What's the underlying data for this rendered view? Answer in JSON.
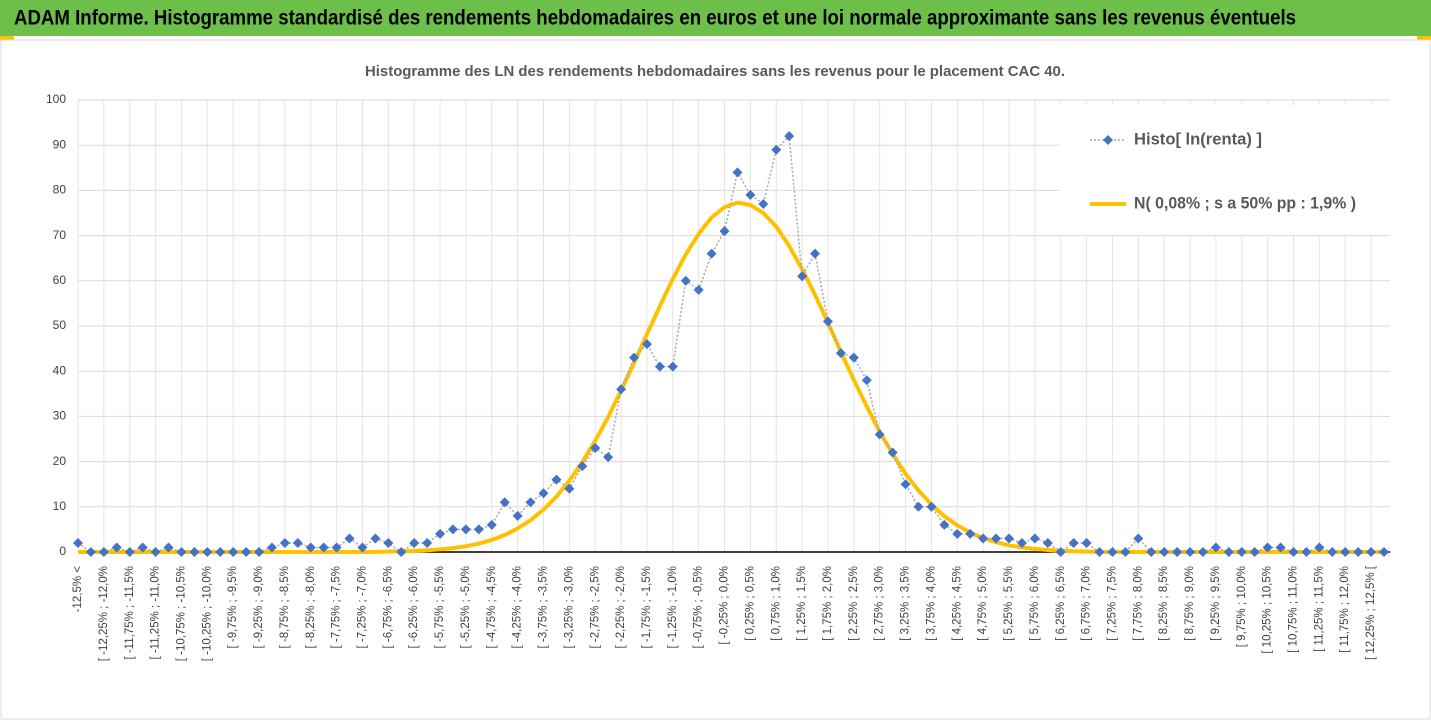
{
  "chart_data": {
    "type": "line",
    "title": "ADAM Informe. Histogramme standardisé des rendements hebdomadaires en euros et une loi normale approximante sans les revenus éventuels",
    "subtitle": "Histogramme des LN des rendements hebdomadaires sans les revenus pour le placement CAC 40.",
    "categories": [
      "-12,5% <",
      null,
      "[ -12,25% ; -12,0%",
      null,
      "[ -11,75% ; -11,5%",
      null,
      "[ -11,25% ; -11,0%",
      null,
      "[ -10,75% ; -10,5%",
      null,
      "[ -10,25% ; -10,0%",
      null,
      "[ -9,75% ; -9,5%",
      null,
      "[ -9,25% ; -9,0%",
      null,
      "[ -8,75% ; -8,5%",
      null,
      "[ -8,25% ; -8,0%",
      null,
      "[ -7,75% ; -7,5%",
      null,
      "[ -7,25% ; -7,0%",
      null,
      "[ -6,75% ; -6,5%",
      null,
      "[ -6,25% ; -6,0%",
      null,
      "[ -5,75% ; -5,5%",
      null,
      "[ -5,25% ; -5,0%",
      null,
      "[ -4,75% ; -4,5%",
      null,
      "[ -4,25% ; -4,0%",
      null,
      "[ -3,75% ; -3,5%",
      null,
      "[ -3,25% ; -3,0%",
      null,
      "[ -2,75% ; -2,5%",
      null,
      "[ -2,25% ; -2,0%",
      null,
      "[ -1,75% ; -1,5%",
      null,
      "[ -1,25% ; -1,0%",
      null,
      "[ -0,75% ; -0,5%",
      null,
      "[ -0,25% ; 0,0%",
      null,
      "[ 0,25% ; 0,5%",
      null,
      "[ 0,75% ; 1,0%",
      null,
      "[ 1,25% ; 1,5%",
      null,
      "[ 1,75% ; 2,0%",
      null,
      "[ 2,25% ; 2,5%",
      null,
      "[ 2,75% ; 3,0%",
      null,
      "[ 3,25% ; 3,5%",
      null,
      "[ 3,75% ; 4,0%",
      null,
      "[ 4,25% ; 4,5%",
      null,
      "[ 4,75% ; 5,0%",
      null,
      "[ 5,25% ; 5,5%",
      null,
      "[ 5,75% ; 6,0%",
      null,
      "[ 6,25% ; 6,5%",
      null,
      "[ 6,75% ; 7,0%",
      null,
      "[ 7,25% ; 7,5%",
      null,
      "[ 7,75% ; 8,0%",
      null,
      "[ 8,25% ; 8,5%",
      null,
      "[ 8,75% ; 9,0%",
      null,
      "[ 9,25% ; 9,5%",
      null,
      "[ 9,75% ; 10,0%",
      null,
      "[ 10,25% ; 10,5%",
      null,
      "[ 10,75% ; 11,0%",
      null,
      "[ 11,25% ; 11,5%",
      null,
      "[ 11,75% ; 12,0%",
      null,
      "[ 12,25% ; 12,5% [",
      null
    ],
    "series": [
      {
        "name": "Histo[ ln(renta) ]",
        "color": "#4472c4",
        "line_color": "#a6a6a6",
        "marker": "diamond",
        "values": [
          2,
          0,
          0,
          1,
          0,
          1,
          0,
          1,
          0,
          0,
          0,
          0,
          0,
          0,
          0,
          1,
          2,
          2,
          1,
          1,
          1,
          3,
          1,
          3,
          2,
          0,
          2,
          2,
          4,
          5,
          5,
          5,
          6,
          11,
          8,
          11,
          13,
          16,
          14,
          19,
          23,
          21,
          36,
          43,
          46,
          41,
          41,
          60,
          58,
          66,
          71,
          84,
          79,
          77,
          89,
          92,
          61,
          66,
          51,
          44,
          43,
          38,
          26,
          22,
          15,
          10,
          10,
          6,
          4,
          4,
          3,
          3,
          3,
          2,
          3,
          2,
          0,
          2,
          2,
          0,
          0,
          0,
          3,
          0,
          0,
          0,
          0,
          0,
          1,
          0,
          0,
          0,
          1,
          1,
          0,
          0,
          1,
          0,
          0,
          0,
          0,
          0
        ]
      },
      {
        "name": "N( 0,08% ; s a 50% pp : 1,9% )",
        "color": "#ffc000",
        "values": [
          0,
          0,
          0,
          0,
          0,
          0,
          0,
          0,
          0,
          0,
          0,
          0,
          0,
          0,
          0,
          0,
          0,
          0,
          0,
          0,
          0,
          0,
          0,
          0,
          0.1,
          0.15,
          0.23,
          0.37,
          0.57,
          0.86,
          1.27,
          1.86,
          2.67,
          3.75,
          5.19,
          7.04,
          9.37,
          12.26,
          15.75,
          19.86,
          24.6,
          29.9,
          35.7,
          41.8,
          48.2,
          54.4,
          60.4,
          65.8,
          70.4,
          74.0,
          76.3,
          77.3,
          76.8,
          75.0,
          72.0,
          67.7,
          62.6,
          56.9,
          50.7,
          44.3,
          38.1,
          32.2,
          26.6,
          21.7,
          17.3,
          13.6,
          10.5,
          7.9,
          5.9,
          4.3,
          3.07,
          2.16,
          1.49,
          1.01,
          0.67,
          0.44,
          0.28,
          0.18,
          0.11,
          0,
          0,
          0,
          0,
          0,
          0,
          0,
          0,
          0,
          0,
          0,
          0,
          0,
          0,
          0,
          0,
          0,
          0,
          0,
          0,
          0,
          0,
          0
        ]
      }
    ],
    "ylim": [
      0,
      100
    ],
    "yticks": [
      0,
      10,
      20,
      30,
      40,
      50,
      60,
      70,
      80,
      90,
      100
    ],
    "grid": true,
    "legend": "upper right"
  }
}
